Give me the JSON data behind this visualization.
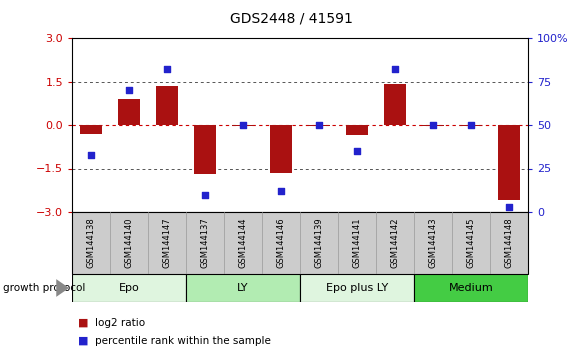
{
  "title": "GDS2448 / 41591",
  "samples": [
    "GSM144138",
    "GSM144140",
    "GSM144147",
    "GSM144137",
    "GSM144144",
    "GSM144146",
    "GSM144139",
    "GSM144141",
    "GSM144142",
    "GSM144143",
    "GSM144145",
    "GSM144148"
  ],
  "log2_ratio": [
    -0.3,
    0.9,
    1.35,
    -1.7,
    -0.05,
    -1.65,
    -0.05,
    -0.35,
    1.4,
    -0.05,
    -0.05,
    -2.6
  ],
  "percentile_rank": [
    33,
    70,
    82,
    10,
    50,
    12,
    50,
    35,
    82,
    50,
    50,
    3
  ],
  "groups": [
    {
      "label": "Epo",
      "start": 0,
      "end": 3,
      "color": "#dff5df"
    },
    {
      "label": "LY",
      "start": 3,
      "end": 6,
      "color": "#b2ecb2"
    },
    {
      "label": "Epo plus LY",
      "start": 6,
      "end": 9,
      "color": "#dff5df"
    },
    {
      "label": "Medium",
      "start": 9,
      "end": 12,
      "color": "#44cc44"
    }
  ],
  "left_ylim": [
    -3,
    3
  ],
  "right_ylim": [
    0,
    100
  ],
  "left_yticks": [
    -3,
    -1.5,
    0,
    1.5,
    3
  ],
  "right_yticks": [
    0,
    25,
    50,
    75,
    100
  ],
  "right_yticklabels": [
    "0",
    "25",
    "50",
    "75",
    "100%"
  ],
  "bar_color": "#aa1111",
  "dot_color": "#2222cc",
  "hline_color": "#cc0000",
  "dotted_line_color": "#555555",
  "sample_bg_color": "#cccccc",
  "background_color": "#ffffff",
  "growth_protocol_label": "growth protocol",
  "legend_bar_label": "log2 ratio",
  "legend_dot_label": "percentile rank within the sample",
  "title_fontsize": 10,
  "axis_fontsize": 8,
  "sample_fontsize": 6,
  "group_fontsize": 8,
  "legend_fontsize": 7.5
}
